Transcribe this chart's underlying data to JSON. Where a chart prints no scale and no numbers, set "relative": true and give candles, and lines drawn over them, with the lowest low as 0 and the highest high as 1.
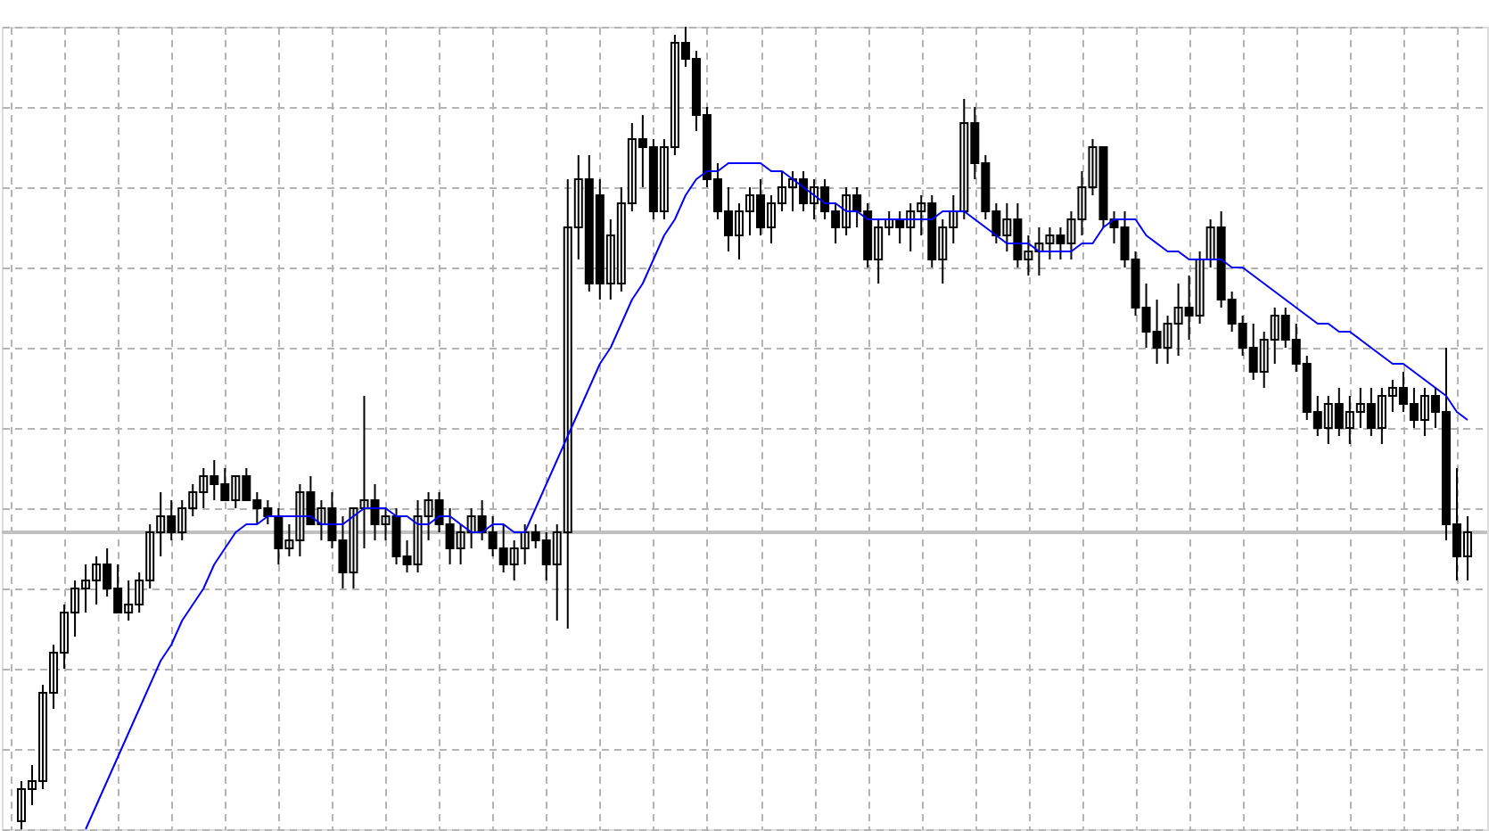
{
  "chart_data": {
    "type": "candlestick",
    "relative": true,
    "grid": true,
    "categories": [
      null,
      null,
      null,
      null,
      null,
      null,
      null,
      null,
      null,
      null,
      null,
      null,
      null,
      null,
      null,
      null,
      null,
      null,
      null,
      null,
      null,
      null,
      null,
      null,
      null,
      null,
      null,
      null,
      null,
      null,
      null,
      null,
      null,
      null,
      null,
      null,
      null,
      null,
      null,
      null,
      null,
      null,
      null,
      null,
      null,
      null,
      null,
      null,
      null,
      null,
      null,
      null,
      null,
      null,
      null,
      null,
      null,
      null,
      null,
      null,
      null,
      null,
      null,
      null,
      null,
      null,
      null,
      null,
      null,
      null,
      null,
      null,
      null,
      null,
      null,
      null,
      null,
      null,
      null,
      null,
      null,
      null,
      null,
      null,
      null,
      null,
      null,
      null,
      null,
      null,
      null,
      null,
      null,
      null,
      null,
      null,
      null,
      null,
      null,
      null,
      null,
      null,
      null,
      null,
      null,
      null,
      null,
      null,
      null,
      null,
      null,
      null,
      null,
      null,
      null,
      null,
      null,
      null,
      null,
      null,
      null,
      null,
      null,
      null,
      null,
      null,
      null,
      null,
      null,
      null,
      null,
      null,
      null,
      null,
      null,
      null
    ],
    "ohlc": [
      [
        0.01,
        0.06,
        0.0,
        0.05
      ],
      [
        0.05,
        0.08,
        0.03,
        0.06
      ],
      [
        0.06,
        0.18,
        0.05,
        0.17
      ],
      [
        0.17,
        0.23,
        0.15,
        0.22
      ],
      [
        0.22,
        0.28,
        0.2,
        0.27
      ],
      [
        0.27,
        0.31,
        0.24,
        0.3
      ],
      [
        0.3,
        0.33,
        0.27,
        0.31
      ],
      [
        0.31,
        0.34,
        0.28,
        0.33
      ],
      [
        0.33,
        0.35,
        0.29,
        0.3
      ],
      [
        0.3,
        0.33,
        0.27,
        0.27
      ],
      [
        0.27,
        0.31,
        0.26,
        0.28
      ],
      [
        0.28,
        0.32,
        0.27,
        0.31
      ],
      [
        0.31,
        0.38,
        0.3,
        0.37
      ],
      [
        0.37,
        0.42,
        0.34,
        0.39
      ],
      [
        0.39,
        0.41,
        0.36,
        0.37
      ],
      [
        0.37,
        0.41,
        0.36,
        0.4
      ],
      [
        0.4,
        0.43,
        0.39,
        0.42
      ],
      [
        0.42,
        0.45,
        0.4,
        0.44
      ],
      [
        0.44,
        0.46,
        0.41,
        0.43
      ],
      [
        0.43,
        0.45,
        0.41,
        0.41
      ],
      [
        0.41,
        0.44,
        0.4,
        0.44
      ],
      [
        0.44,
        0.45,
        0.41,
        0.41
      ],
      [
        0.41,
        0.42,
        0.38,
        0.4
      ],
      [
        0.4,
        0.41,
        0.38,
        0.39
      ],
      [
        0.39,
        0.4,
        0.33,
        0.35
      ],
      [
        0.35,
        0.38,
        0.34,
        0.36
      ],
      [
        0.36,
        0.43,
        0.34,
        0.42
      ],
      [
        0.42,
        0.44,
        0.38,
        0.38
      ],
      [
        0.38,
        0.41,
        0.36,
        0.4
      ],
      [
        0.4,
        0.42,
        0.35,
        0.36
      ],
      [
        0.36,
        0.39,
        0.3,
        0.32
      ],
      [
        0.32,
        0.4,
        0.3,
        0.4
      ],
      [
        0.4,
        0.54,
        0.35,
        0.41
      ],
      [
        0.41,
        0.43,
        0.36,
        0.38
      ],
      [
        0.38,
        0.4,
        0.36,
        0.39
      ],
      [
        0.39,
        0.4,
        0.33,
        0.34
      ],
      [
        0.34,
        0.36,
        0.32,
        0.33
      ],
      [
        0.33,
        0.41,
        0.32,
        0.39
      ],
      [
        0.39,
        0.42,
        0.36,
        0.41
      ],
      [
        0.41,
        0.42,
        0.37,
        0.38
      ],
      [
        0.38,
        0.4,
        0.33,
        0.35
      ],
      [
        0.35,
        0.38,
        0.33,
        0.37
      ],
      [
        0.37,
        0.4,
        0.35,
        0.39
      ],
      [
        0.39,
        0.41,
        0.36,
        0.37
      ],
      [
        0.37,
        0.39,
        0.34,
        0.35
      ],
      [
        0.35,
        0.38,
        0.32,
        0.33
      ],
      [
        0.33,
        0.36,
        0.31,
        0.35
      ],
      [
        0.35,
        0.38,
        0.33,
        0.37
      ],
      [
        0.37,
        0.38,
        0.35,
        0.36
      ],
      [
        0.36,
        0.37,
        0.31,
        0.33
      ],
      [
        0.33,
        0.38,
        0.26,
        0.37
      ],
      [
        0.37,
        0.81,
        0.25,
        0.75
      ],
      [
        0.75,
        0.84,
        0.71,
        0.81
      ],
      [
        0.81,
        0.84,
        0.67,
        0.68
      ],
      [
        0.79,
        0.81,
        0.66,
        0.68
      ],
      [
        0.68,
        0.76,
        0.66,
        0.74
      ],
      [
        0.68,
        0.8,
        0.67,
        0.78
      ],
      [
        0.78,
        0.88,
        0.77,
        0.86
      ],
      [
        0.86,
        0.89,
        0.8,
        0.85
      ],
      [
        0.85,
        0.86,
        0.76,
        0.77
      ],
      [
        0.77,
        0.86,
        0.76,
        0.85
      ],
      [
        0.85,
        0.99,
        0.84,
        0.98
      ],
      [
        0.98,
        1.0,
        0.95,
        0.96
      ],
      [
        0.96,
        0.97,
        0.87,
        0.89
      ],
      [
        0.89,
        0.9,
        0.8,
        0.81
      ],
      [
        0.81,
        0.83,
        0.76,
        0.77
      ],
      [
        0.77,
        0.8,
        0.72,
        0.74
      ],
      [
        0.74,
        0.78,
        0.71,
        0.77
      ],
      [
        0.77,
        0.8,
        0.74,
        0.79
      ],
      [
        0.79,
        0.81,
        0.74,
        0.75
      ],
      [
        0.75,
        0.79,
        0.73,
        0.78
      ],
      [
        0.78,
        0.82,
        0.77,
        0.8
      ],
      [
        0.8,
        0.82,
        0.77,
        0.81
      ],
      [
        0.81,
        0.82,
        0.77,
        0.78
      ],
      [
        0.78,
        0.81,
        0.76,
        0.8
      ],
      [
        0.8,
        0.81,
        0.76,
        0.77
      ],
      [
        0.77,
        0.78,
        0.73,
        0.75
      ],
      [
        0.75,
        0.8,
        0.74,
        0.79
      ],
      [
        0.79,
        0.8,
        0.75,
        0.77
      ],
      [
        0.77,
        0.78,
        0.7,
        0.71
      ],
      [
        0.71,
        0.76,
        0.68,
        0.75
      ],
      [
        0.75,
        0.77,
        0.74,
        0.76
      ],
      [
        0.76,
        0.77,
        0.73,
        0.75
      ],
      [
        0.75,
        0.78,
        0.72,
        0.77
      ],
      [
        0.77,
        0.79,
        0.74,
        0.78
      ],
      [
        0.78,
        0.79,
        0.7,
        0.71
      ],
      [
        0.71,
        0.76,
        0.68,
        0.75
      ],
      [
        0.75,
        0.79,
        0.73,
        0.77
      ],
      [
        0.77,
        0.91,
        0.76,
        0.88
      ],
      [
        0.88,
        0.9,
        0.81,
        0.83
      ],
      [
        0.83,
        0.84,
        0.76,
        0.77
      ],
      [
        0.77,
        0.78,
        0.73,
        0.74
      ],
      [
        0.74,
        0.78,
        0.72,
        0.76
      ],
      [
        0.76,
        0.78,
        0.7,
        0.71
      ],
      [
        0.71,
        0.74,
        0.69,
        0.72
      ],
      [
        0.72,
        0.75,
        0.69,
        0.73
      ],
      [
        0.73,
        0.75,
        0.71,
        0.74
      ],
      [
        0.74,
        0.75,
        0.71,
        0.73
      ],
      [
        0.73,
        0.77,
        0.71,
        0.76
      ],
      [
        0.76,
        0.82,
        0.74,
        0.8
      ],
      [
        0.8,
        0.86,
        0.79,
        0.85
      ],
      [
        0.85,
        0.85,
        0.75,
        0.76
      ],
      [
        0.76,
        0.77,
        0.73,
        0.75
      ],
      [
        0.75,
        0.77,
        0.7,
        0.71
      ],
      [
        0.71,
        0.72,
        0.64,
        0.65
      ],
      [
        0.65,
        0.68,
        0.6,
        0.62
      ],
      [
        0.62,
        0.66,
        0.58,
        0.6
      ],
      [
        0.6,
        0.64,
        0.58,
        0.63
      ],
      [
        0.63,
        0.68,
        0.59,
        0.65
      ],
      [
        0.65,
        0.69,
        0.61,
        0.64
      ],
      [
        0.64,
        0.72,
        0.63,
        0.71
      ],
      [
        0.71,
        0.76,
        0.7,
        0.75
      ],
      [
        0.75,
        0.77,
        0.65,
        0.66
      ],
      [
        0.66,
        0.67,
        0.62,
        0.63
      ],
      [
        0.63,
        0.64,
        0.59,
        0.6
      ],
      [
        0.6,
        0.63,
        0.56,
        0.57
      ],
      [
        0.57,
        0.62,
        0.55,
        0.61
      ],
      [
        0.61,
        0.65,
        0.58,
        0.64
      ],
      [
        0.64,
        0.65,
        0.6,
        0.61
      ],
      [
        0.61,
        0.63,
        0.57,
        0.58
      ],
      [
        0.58,
        0.59,
        0.51,
        0.52
      ],
      [
        0.52,
        0.54,
        0.49,
        0.5
      ],
      [
        0.5,
        0.54,
        0.48,
        0.53
      ],
      [
        0.53,
        0.55,
        0.49,
        0.5
      ],
      [
        0.5,
        0.54,
        0.48,
        0.52
      ],
      [
        0.52,
        0.55,
        0.5,
        0.53
      ],
      [
        0.53,
        0.55,
        0.49,
        0.5
      ],
      [
        0.5,
        0.55,
        0.48,
        0.54
      ],
      [
        0.54,
        0.56,
        0.52,
        0.55
      ],
      [
        0.55,
        0.57,
        0.52,
        0.53
      ],
      [
        0.53,
        0.55,
        0.5,
        0.51
      ],
      [
        0.51,
        0.55,
        0.49,
        0.54
      ],
      [
        0.54,
        0.55,
        0.5,
        0.52
      ],
      [
        0.52,
        0.6,
        0.36,
        0.38
      ],
      [
        0.38,
        0.45,
        0.31,
        0.34
      ],
      [
        0.34,
        0.39,
        0.31,
        0.37
      ]
    ],
    "series": [
      {
        "type": "line",
        "color": "#0000ff",
        "values": [
          null,
          null,
          null,
          null,
          null,
          null,
          0.0,
          0.03,
          0.06,
          0.09,
          0.12,
          0.15,
          0.18,
          0.21,
          0.23,
          0.26,
          0.28,
          0.3,
          0.33,
          0.35,
          0.37,
          0.38,
          0.38,
          0.39,
          0.39,
          0.39,
          0.39,
          0.39,
          0.38,
          0.38,
          0.38,
          0.39,
          0.4,
          0.4,
          0.4,
          0.39,
          0.39,
          0.38,
          0.38,
          0.39,
          0.39,
          0.38,
          0.37,
          0.37,
          0.38,
          0.38,
          0.37,
          0.37,
          0.4,
          0.43,
          0.46,
          0.49,
          0.52,
          0.55,
          0.58,
          0.6,
          0.63,
          0.66,
          0.68,
          0.71,
          0.74,
          0.76,
          0.79,
          0.81,
          0.82,
          0.82,
          0.83,
          0.83,
          0.83,
          0.83,
          0.82,
          0.82,
          0.81,
          0.8,
          0.79,
          0.78,
          0.78,
          0.77,
          0.77,
          0.76,
          0.76,
          0.76,
          0.76,
          0.76,
          0.76,
          0.76,
          0.77,
          0.77,
          0.77,
          0.76,
          0.75,
          0.74,
          0.73,
          0.73,
          0.73,
          0.72,
          0.72,
          0.72,
          0.72,
          0.73,
          0.73,
          0.75,
          0.76,
          0.76,
          0.76,
          0.74,
          0.73,
          0.72,
          0.72,
          0.71,
          0.71,
          0.71,
          0.71,
          0.7,
          0.7,
          0.69,
          0.68,
          0.67,
          0.66,
          0.65,
          0.64,
          0.63,
          0.63,
          0.62,
          0.62,
          0.61,
          0.6,
          0.59,
          0.58,
          0.58,
          0.57,
          0.56,
          0.55,
          0.54,
          0.52,
          0.51
        ]
      }
    ],
    "ref_lines": [
      {
        "axis": "y",
        "value": 0.37,
        "color": "#c0c0c0"
      }
    ]
  }
}
